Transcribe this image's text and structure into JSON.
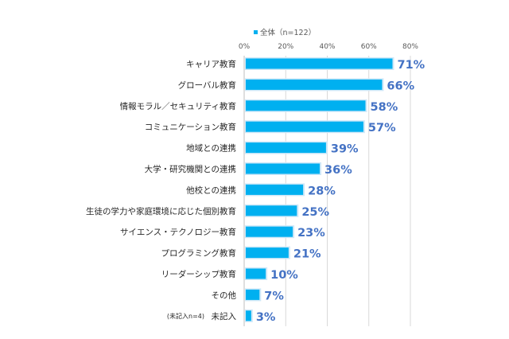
{
  "chart_data": {
    "type": "bar",
    "orientation": "horizontal",
    "title": "",
    "xlabel": "",
    "ylabel": "",
    "xlim": [
      0,
      80
    ],
    "ticks": [
      "0%",
      "20%",
      "40%",
      "60%",
      "80%"
    ],
    "tick_values": [
      0,
      20,
      40,
      60,
      80
    ],
    "grid": true,
    "legend_position": "top",
    "series": [
      {
        "name": "全体（n=122）",
        "color": "#00b0f0"
      }
    ],
    "categories": [
      "キャリア教育",
      "グローバル教育",
      "情報モラル／セキュリティ教育",
      "コミュニケーション教育",
      "地域との連携",
      "大学・研究機関との連携",
      "他校との連携",
      "生徒の学力や家庭環境に応じた個別教育",
      "サイエンス・テクノロジー教育",
      "プログラミング教育",
      "リーダーシップ教育",
      "その他",
      "未記入"
    ],
    "values": [
      71,
      66,
      58,
      57,
      39,
      36,
      28,
      25,
      23,
      21,
      10,
      7,
      3
    ],
    "data_labels": [
      "71%",
      "66%",
      "58%",
      "57%",
      "39%",
      "36%",
      "28%",
      "25%",
      "23%",
      "21%",
      "10%",
      "7%",
      "3%"
    ],
    "annotations": [
      "(未記入n=4)"
    ],
    "label_color": "#4472c4"
  }
}
